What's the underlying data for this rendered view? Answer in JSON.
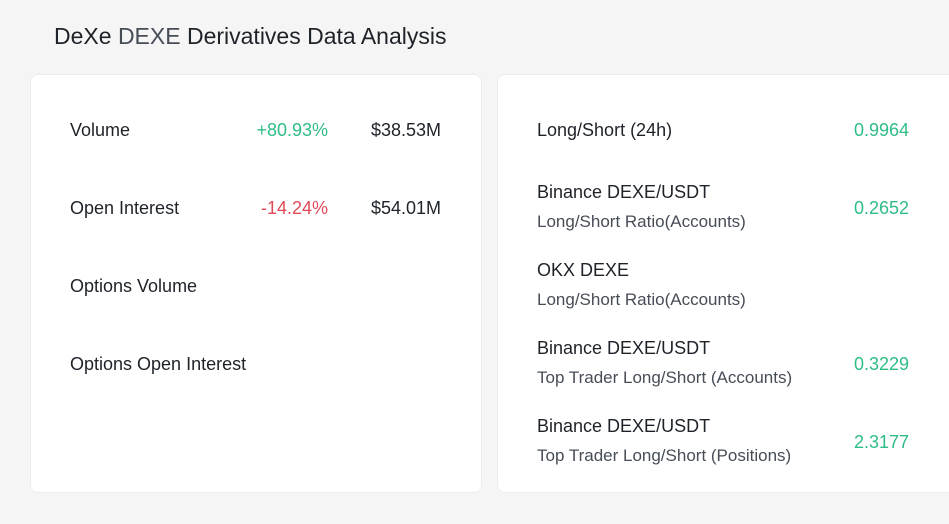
{
  "header": {
    "coin_name": "DeXe",
    "coin_symbol": "DEXE",
    "title_rest": "Derivatives Data Analysis"
  },
  "left_panel": {
    "rows": [
      {
        "label": "Volume",
        "change": "+80.93%",
        "value": "$38.53M",
        "direction": "up"
      },
      {
        "label": "Open Interest",
        "change": "-14.24%",
        "value": "$54.01M",
        "direction": "down"
      },
      {
        "label": "Options Volume",
        "change": "",
        "value": ""
      },
      {
        "label": "Options Open Interest",
        "change": "",
        "value": ""
      }
    ]
  },
  "right_panel": {
    "rows": [
      {
        "title": "Long/Short (24h)",
        "subtitle": "",
        "value": "0.9964"
      },
      {
        "title": "Binance DEXE/USDT",
        "subtitle": "Long/Short Ratio(Accounts)",
        "value": "0.2652"
      },
      {
        "title": "OKX DEXE",
        "subtitle": "Long/Short Ratio(Accounts)",
        "value": ""
      },
      {
        "title": "Binance DEXE/USDT",
        "subtitle": "Top Trader Long/Short (Accounts)",
        "value": "0.3229"
      },
      {
        "title": "Binance DEXE/USDT",
        "subtitle": "Top Trader Long/Short (Positions)",
        "value": "2.3177"
      }
    ]
  },
  "colors": {
    "positive": "#2ebd85",
    "negative": "#e04a59"
  }
}
